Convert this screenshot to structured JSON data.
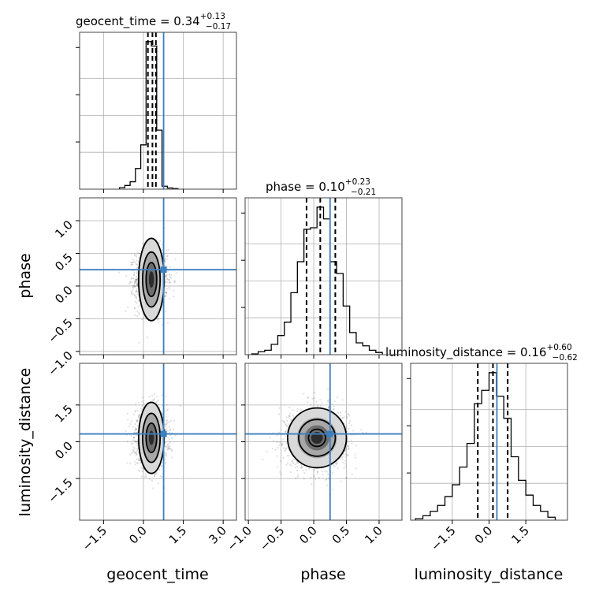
{
  "chart_data": {
    "type": "corner",
    "parameters": [
      {
        "key": "geocent_time",
        "label": "geocent_time",
        "median": "0.34",
        "plus": "+0.13",
        "minus": "−0.17",
        "title_prefix": "geocent_time = ",
        "range": [
          -2.4,
          3.5
        ],
        "ticks": [
          -1.5,
          0.0,
          1.5,
          3.0
        ],
        "tick_labels": [
          "−1.5",
          "0.0",
          "1.5",
          "3.0"
        ],
        "quantiles": [
          0.17,
          0.34,
          0.47
        ],
        "truth": 0.76,
        "hist": {
          "edges": [
            -0.9,
            -0.7,
            -0.5,
            -0.3,
            -0.1,
            0.1,
            0.3,
            0.5,
            0.7,
            0.9,
            1.1,
            1.3
          ],
          "counts": [
            0.01,
            0.025,
            0.05,
            0.14,
            0.3,
            1.0,
            0.97,
            0.4,
            0.02,
            0.008,
            0.004
          ]
        }
      },
      {
        "key": "phase",
        "label": "phase",
        "median": "0.10",
        "plus": "+0.23",
        "minus": "−0.21",
        "title_prefix": "phase = ",
        "range": [
          -1.05,
          1.35
        ],
        "ticks": [
          -1.0,
          -0.5,
          0.0,
          0.5,
          1.0
        ],
        "tick_labels": [
          "−1.0",
          "−0.5",
          "0.0",
          "0.5",
          "1.0"
        ],
        "quantiles": [
          -0.11,
          0.1,
          0.33
        ],
        "truth": 0.25,
        "hist": {
          "edges": [
            -0.95,
            -0.85,
            -0.75,
            -0.65,
            -0.55,
            -0.45,
            -0.35,
            -0.25,
            -0.15,
            -0.05,
            0.05,
            0.15,
            0.25,
            0.35,
            0.45,
            0.55,
            0.65,
            0.75,
            0.85,
            0.95,
            1.05
          ],
          "counts": [
            0.005,
            0.02,
            0.03,
            0.07,
            0.13,
            0.22,
            0.42,
            0.63,
            0.85,
            0.86,
            1.0,
            0.92,
            0.63,
            0.55,
            0.33,
            0.15,
            0.08,
            0.06,
            0.03,
            0.015
          ]
        }
      },
      {
        "key": "luminosity_distance",
        "label": "luminosity_distance",
        "median": "0.16",
        "plus": "+0.60",
        "minus": "−0.62",
        "title_prefix": "luminosity_distance = ",
        "range": [
          -3.2,
          3.2
        ],
        "ticks": [
          -1.5,
          0.0,
          1.5
        ],
        "tick_labels": [
          "−1.5",
          "0.0",
          "1.5"
        ],
        "quantiles": [
          -0.46,
          0.16,
          0.76
        ],
        "truth": 0.32,
        "hist": {
          "edges": [
            -3.0,
            -2.7,
            -2.4,
            -2.1,
            -1.8,
            -1.5,
            -1.2,
            -0.9,
            -0.6,
            -0.3,
            0.0,
            0.3,
            0.6,
            0.9,
            1.2,
            1.5,
            1.8,
            2.1,
            2.4,
            2.7
          ],
          "counts": [
            0.01,
            0.03,
            0.06,
            0.1,
            0.16,
            0.24,
            0.36,
            0.52,
            0.79,
            0.88,
            1.0,
            0.84,
            0.69,
            0.43,
            0.27,
            0.17,
            0.1,
            0.06,
            0.02
          ]
        }
      }
    ],
    "pairs": [
      {
        "x": "geocent_time",
        "y": "phase",
        "center": [
          0.3,
          0.1
        ],
        "spread": [
          0.3,
          0.23
        ],
        "truth": [
          0.76,
          0.25
        ],
        "contours": [
          [
            0.2,
            0.26
          ],
          [
            0.33,
            0.42
          ],
          [
            0.48,
            0.63
          ]
        ]
      },
      {
        "x": "geocent_time",
        "y": "luminosity_distance",
        "center": [
          0.3,
          0.16
        ],
        "spread": [
          0.3,
          0.6
        ],
        "truth": [
          0.76,
          0.32
        ],
        "contours": [
          [
            0.2,
            0.6
          ],
          [
            0.33,
            1.0
          ],
          [
            0.48,
            1.45
          ]
        ]
      },
      {
        "x": "phase",
        "y": "luminosity_distance",
        "center": [
          0.05,
          0.16
        ],
        "spread": [
          0.23,
          0.6
        ],
        "truth": [
          0.25,
          0.32
        ],
        "contours": [
          [
            0.13,
            0.35
          ],
          [
            0.28,
            0.75
          ],
          [
            0.45,
            1.22
          ]
        ]
      }
    ]
  }
}
